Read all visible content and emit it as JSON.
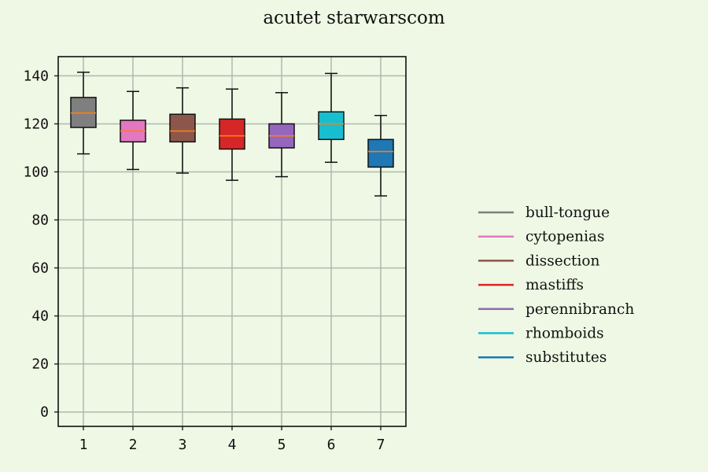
{
  "chart_data": {
    "type": "box",
    "title": "acutet starwarscom",
    "xlabel": "",
    "ylabel": "",
    "ylim": [
      -6,
      148
    ],
    "yticks": [
      0,
      20,
      40,
      60,
      80,
      100,
      120,
      140
    ],
    "categories": [
      "1",
      "2",
      "3",
      "4",
      "5",
      "6",
      "7"
    ],
    "grid": true,
    "legend_position": "right",
    "median_color": "#ff7f0e",
    "series": [
      {
        "name": "bull-tongue",
        "color": "#7f7f7f",
        "whisker_low": 107.5,
        "q1": 118.5,
        "median": 124.5,
        "q3": 131.0,
        "whisker_high": 141.5
      },
      {
        "name": "cytopenias",
        "color": "#e377c2",
        "whisker_low": 101.0,
        "q1": 112.5,
        "median": 117.0,
        "q3": 121.5,
        "whisker_high": 133.5
      },
      {
        "name": "dissection",
        "color": "#8c564b",
        "whisker_low": 99.5,
        "q1": 112.5,
        "median": 117.0,
        "q3": 124.0,
        "whisker_high": 135.0
      },
      {
        "name": "mastiffs",
        "color": "#d62728",
        "whisker_low": 96.5,
        "q1": 109.5,
        "median": 115.0,
        "q3": 122.0,
        "whisker_high": 134.5
      },
      {
        "name": "perennibranch",
        "color": "#9467bd",
        "whisker_low": 98.0,
        "q1": 110.0,
        "median": 115.0,
        "q3": 120.0,
        "whisker_high": 133.0
      },
      {
        "name": "rhomboids",
        "color": "#17becf",
        "whisker_low": 104.0,
        "q1": 113.5,
        "median": 120.0,
        "q3": 125.0,
        "whisker_high": 141.0
      },
      {
        "name": "substitutes",
        "color": "#1f77b4",
        "whisker_low": 90.0,
        "q1": 102.0,
        "median": 108.5,
        "q3": 113.5,
        "whisker_high": 123.5
      }
    ]
  }
}
